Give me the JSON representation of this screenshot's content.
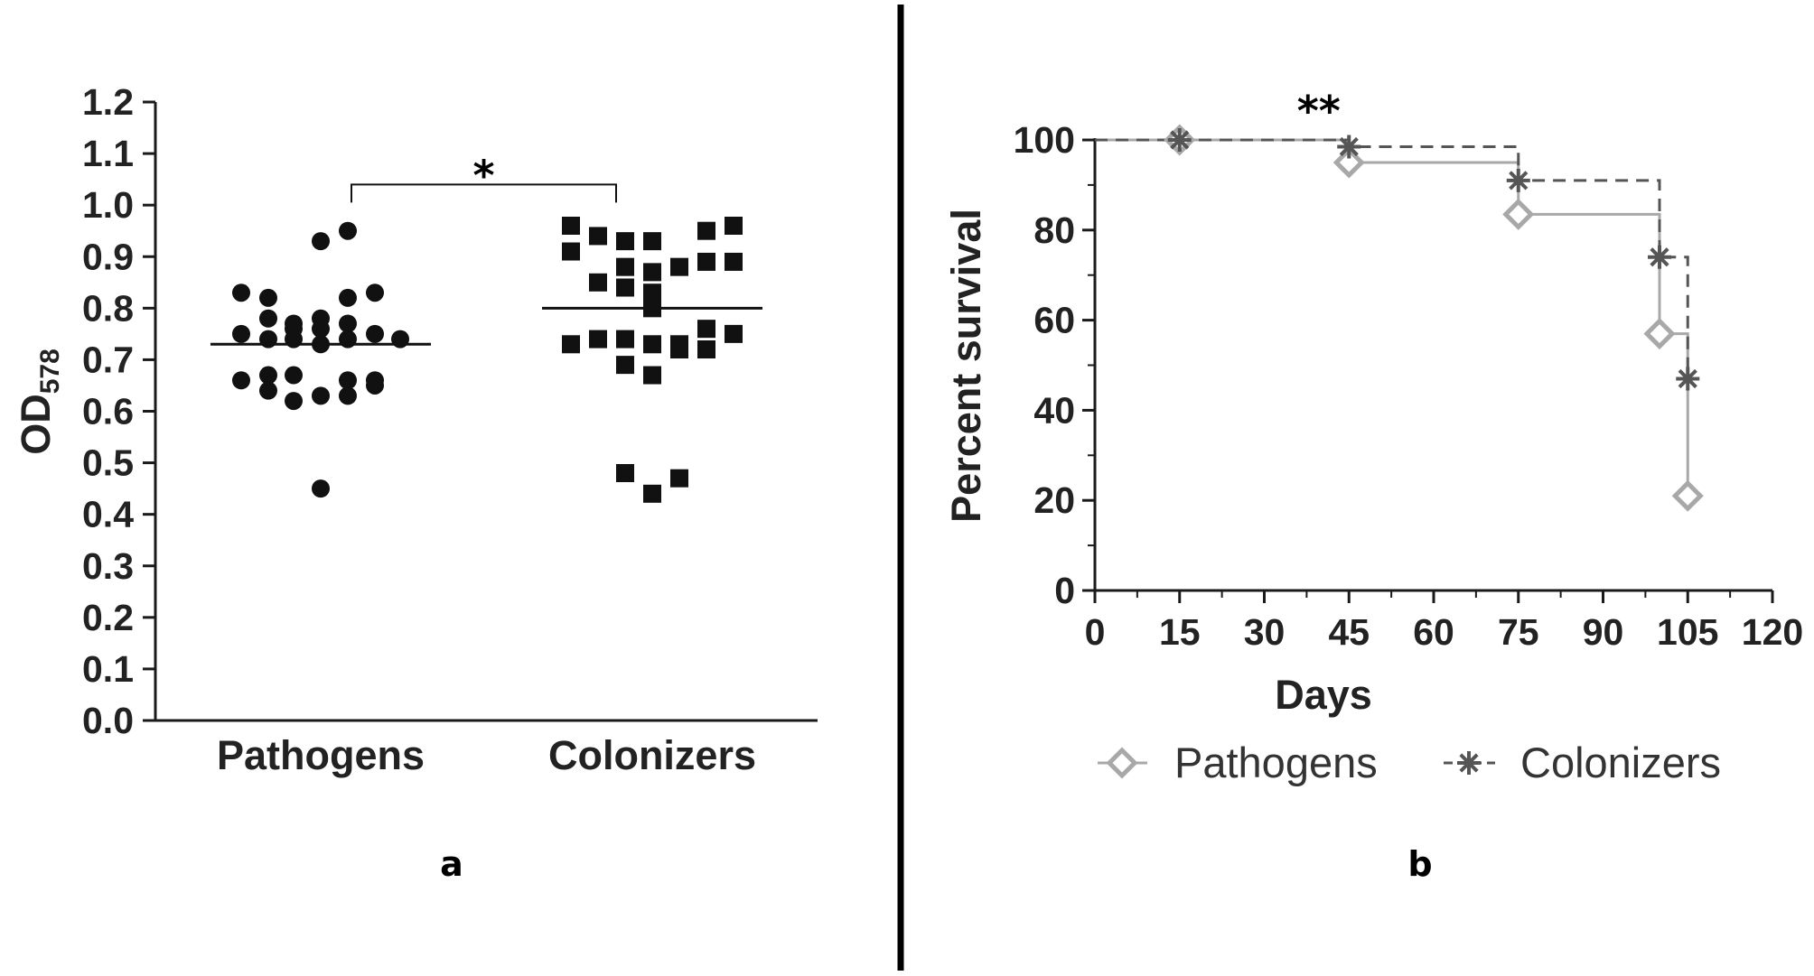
{
  "colors": {
    "axis": "#1a1a1a",
    "points": "#111111",
    "pathogens_line": "#a8a8a8",
    "colonizers_line": "#555555",
    "divider": "#000000"
  },
  "chart_data": [
    {
      "type": "scatter",
      "panel_label": "a",
      "ylabel": "OD",
      "ylabel_sub": "578",
      "ylim": [
        0.0,
        1.2
      ],
      "yticks": [
        "0.0",
        "0.1",
        "0.2",
        "0.3",
        "0.4",
        "0.5",
        "0.6",
        "0.7",
        "0.8",
        "0.9",
        "1.0",
        "1.1",
        "1.2"
      ],
      "categories": [
        "Pathogens",
        "Colonizers"
      ],
      "series": [
        {
          "category": "Pathogens",
          "marker": "circle",
          "mean": 0.73,
          "values": [
            0.95,
            0.93,
            0.83,
            0.82,
            0.82,
            0.83,
            0.78,
            0.77,
            0.78,
            0.77,
            0.76,
            0.76,
            0.75,
            0.75,
            0.74,
            0.74,
            0.74,
            0.73,
            0.74,
            0.66,
            0.67,
            0.66,
            0.67,
            0.66,
            0.64,
            0.63,
            0.62,
            0.63,
            0.65,
            0.45
          ]
        },
        {
          "category": "Colonizers",
          "marker": "square",
          "mean": 0.8,
          "values": [
            0.96,
            0.96,
            0.95,
            0.94,
            0.93,
            0.93,
            0.91,
            0.89,
            0.89,
            0.88,
            0.87,
            0.88,
            0.85,
            0.84,
            0.83,
            0.8,
            0.76,
            0.75,
            0.74,
            0.74,
            0.73,
            0.73,
            0.73,
            0.72,
            0.72,
            0.69,
            0.67,
            0.48,
            0.47,
            0.44
          ]
        }
      ],
      "significance": {
        "label": "*",
        "between": [
          "Pathogens",
          "Colonizers"
        ],
        "bracket_y": 1.04
      }
    },
    {
      "type": "line",
      "step": true,
      "panel_label": "b",
      "xlabel": "Days",
      "ylabel": "Percent survival",
      "xlim": [
        0,
        120
      ],
      "ylim": [
        0,
        100
      ],
      "xticks": [
        "0",
        "15",
        "30",
        "45",
        "60",
        "75",
        "90",
        "105",
        "120"
      ],
      "yticks": [
        "0",
        "20",
        "40",
        "60",
        "80",
        "100"
      ],
      "significance": {
        "label": "**",
        "x": 39,
        "y": 106
      },
      "series": [
        {
          "name": "Pathogens",
          "marker": "diamond",
          "line_style": "solid",
          "x": [
            0,
            15,
            45,
            75,
            100,
            105
          ],
          "y": [
            100,
            100,
            95,
            83.5,
            57,
            21
          ]
        },
        {
          "name": "Colonizers",
          "marker": "star",
          "line_style": "dashed",
          "x": [
            0,
            15,
            45,
            75,
            100,
            105
          ],
          "y": [
            100,
            100,
            98.5,
            91,
            74,
            47
          ]
        }
      ],
      "legend": {
        "placement": "bottom",
        "entries": [
          "Pathogens",
          "Colonizers"
        ]
      }
    }
  ]
}
